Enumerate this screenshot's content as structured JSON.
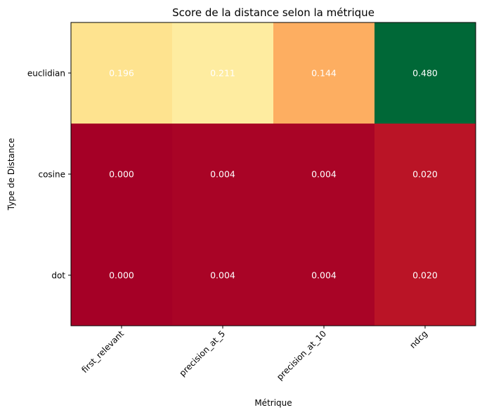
{
  "chart_data": {
    "type": "heatmap",
    "title": "Score de la distance selon la métrique",
    "xlabel": "Métrique",
    "ylabel": "Type de Distance",
    "x_categories": [
      "first_relevant",
      "precision_at_5",
      "precision_at_10",
      "ndcg"
    ],
    "y_categories": [
      "euclidian",
      "cosine",
      "dot"
    ],
    "values": [
      [
        0.196,
        0.211,
        0.144,
        0.48
      ],
      [
        0.0,
        0.004,
        0.004,
        0.02
      ],
      [
        0.0,
        0.004,
        0.004,
        0.02
      ]
    ],
    "value_labels": [
      [
        "0.196",
        "0.211",
        "0.144",
        "0.480"
      ],
      [
        "0.000",
        "0.004",
        "0.004",
        "0.020"
      ],
      [
        "0.000",
        "0.004",
        "0.004",
        "0.020"
      ]
    ],
    "colormap": "RdYlGn",
    "color_range": [
      0.0,
      0.48
    ],
    "colorbar": false,
    "grid": false
  }
}
